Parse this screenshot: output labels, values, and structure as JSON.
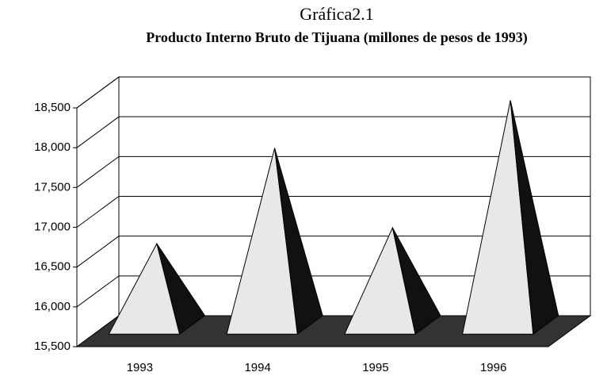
{
  "chart_data": {
    "type": "pyramid",
    "title": "Gráfica2.1",
    "subtitle": "Producto Interno Bruto de Tijuana (millones de pesos de 1993)",
    "categories": [
      "1993",
      "1994",
      "1995",
      "1996"
    ],
    "values": [
      16600,
      17800,
      16800,
      18400
    ],
    "color": "#e8e8e8",
    "ylim": [
      15500,
      18500
    ],
    "yticks": [
      {
        "value": 15500,
        "label": "15,500"
      },
      {
        "value": 16000,
        "label": "16,000"
      },
      {
        "value": 16500,
        "label": "16,500"
      },
      {
        "value": 17000,
        "label": "17,000"
      },
      {
        "value": 17500,
        "label": "17,500"
      },
      {
        "value": 18000,
        "label": "18,000"
      },
      {
        "value": 18500,
        "label": "18,500"
      }
    ],
    "grid": true
  }
}
